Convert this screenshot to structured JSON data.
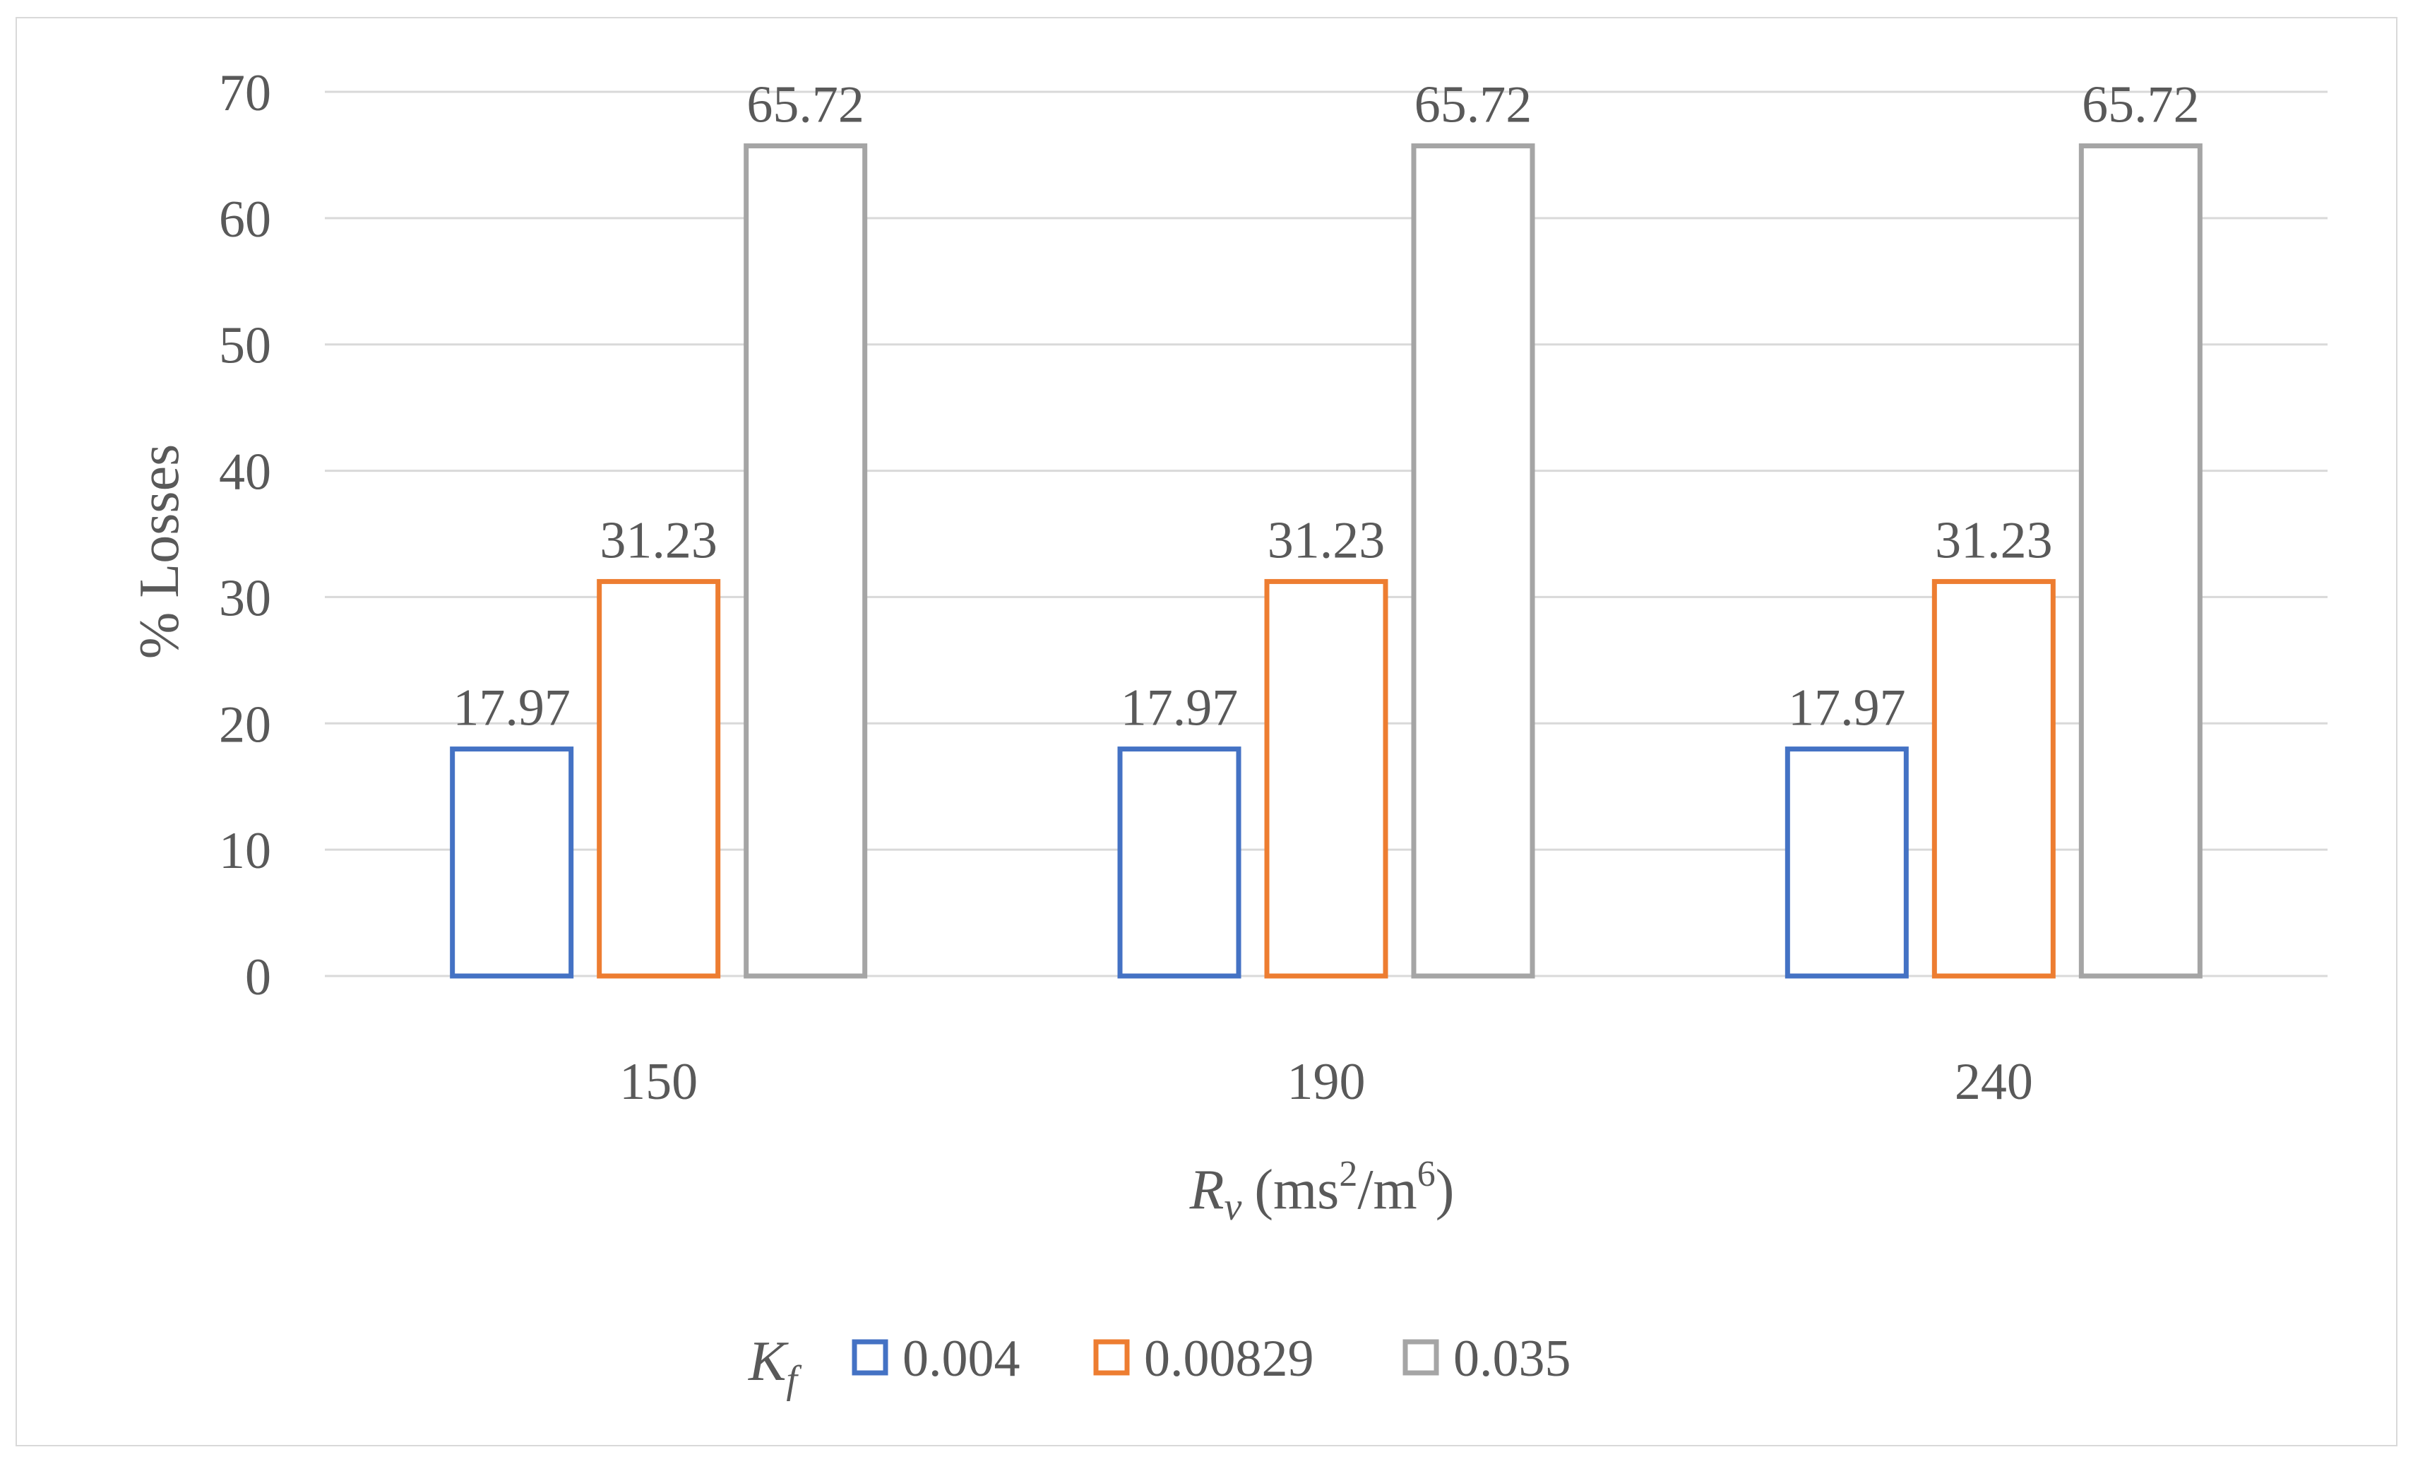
{
  "chart_data": {
    "type": "bar",
    "categories": [
      "150",
      "190",
      "240"
    ],
    "series": [
      {
        "name": "0.004",
        "values": [
          17.97,
          17.97,
          17.97
        ],
        "color": "#4472c4"
      },
      {
        "name": "0.00829",
        "values": [
          31.23,
          31.23,
          31.23
        ],
        "color": "#ed7d31"
      },
      {
        "name": "0.035",
        "values": [
          65.72,
          65.72,
          65.72
        ],
        "color": "#a5a5a5"
      }
    ],
    "ylim": [
      0,
      70
    ],
    "yticks": [
      0,
      10,
      20,
      30,
      40,
      50,
      60,
      70
    ],
    "ylabel": "% Losses",
    "xlabel": {
      "symbol": "R",
      "subscript": "v",
      "units_open": "(ms",
      "units_sup1": "2",
      "units_mid": "/m",
      "units_sup2": "6",
      "units_close": ")"
    },
    "legend": {
      "title_symbol": "K",
      "title_subscript": "f",
      "placement": "bottom"
    },
    "grid": true,
    "bar_style": "outline",
    "data_labels": true
  }
}
